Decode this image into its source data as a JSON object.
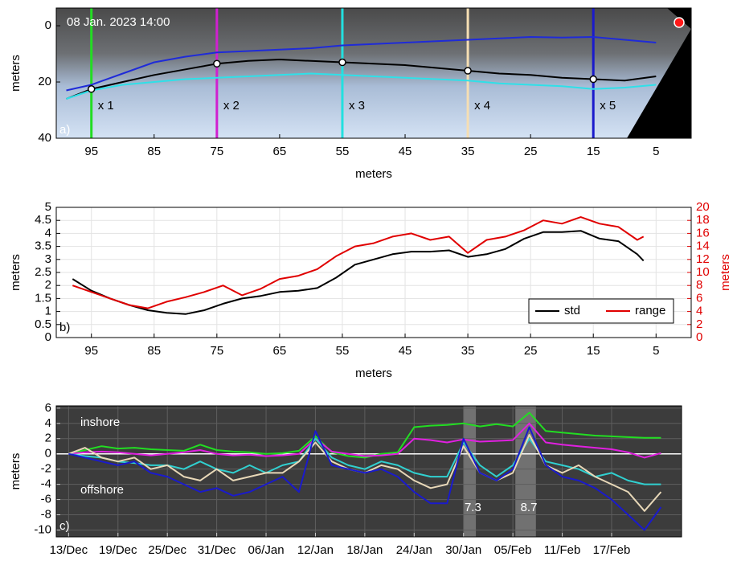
{
  "chart_data": [
    {
      "type": "line",
      "xlabel": "meters",
      "ylabel": "meters",
      "xlim": [
        100.6,
        -0.6
      ],
      "ylim": [
        40,
        -6.3
      ],
      "xticks": [
        95,
        85,
        75,
        65,
        55,
        45,
        35,
        25,
        15,
        5
      ],
      "yticks": [
        0,
        20,
        40
      ],
      "grid": false,
      "x": [
        99,
        95,
        90,
        85,
        80,
        75,
        70,
        65,
        60,
        55,
        50,
        45,
        40,
        35,
        30,
        25,
        20,
        15,
        10,
        5
      ],
      "series": [
        {
          "color": "#1f2bd8",
          "values": [
            23,
            21,
            17,
            13,
            11,
            9.5,
            9,
            8.5,
            8,
            7,
            6.5,
            6,
            5.5,
            5,
            4.5,
            4,
            4.2,
            4,
            5,
            6
          ]
        },
        {
          "color": "#000000",
          "values": [
            26,
            22.5,
            20,
            17.5,
            15.5,
            13.5,
            12.5,
            12,
            12.5,
            13,
            13.5,
            14,
            15,
            16,
            17,
            17.5,
            18.5,
            19,
            19.5,
            18
          ]
        },
        {
          "color": "#2fe0e8",
          "values": [
            26,
            23,
            21,
            20,
            19,
            18.5,
            18,
            17.5,
            17,
            17.5,
            18,
            18.5,
            19,
            19.5,
            20.5,
            21,
            21.5,
            22.5,
            22,
            21
          ]
        }
      ],
      "profiles": [
        {
          "label": "x 1",
          "x": 95,
          "y": 22.5,
          "color": "#22dd22"
        },
        {
          "label": "x 2",
          "x": 75,
          "y": 13.5,
          "color": "#d020d0"
        },
        {
          "label": "x 3",
          "x": 55,
          "y": 13,
          "color": "#22e0e0"
        },
        {
          "label": "x 4",
          "x": 35,
          "y": 16,
          "color": "#f5deb3"
        },
        {
          "label": "x 5",
          "x": 15,
          "y": 19,
          "color": "#1a1acc"
        }
      ],
      "annotations": [
        {
          "text": "08 Jan. 2023 14:00"
        },
        {
          "text": "a)"
        }
      ]
    },
    {
      "type": "line",
      "xlabel": "meters",
      "ylabel": "meters",
      "y2label": "meters",
      "y2_color": "#e00000",
      "xlim": [
        100.6,
        -0.6
      ],
      "ylim": [
        0,
        5
      ],
      "y2lim": [
        0,
        20
      ],
      "xticks": [
        95,
        85,
        75,
        65,
        55,
        45,
        35,
        25,
        15,
        5
      ],
      "yticks": [
        0,
        0.5,
        1,
        1.5,
        2,
        2.5,
        3,
        3.5,
        4,
        4.5,
        5
      ],
      "y2ticks": [
        0,
        2,
        4,
        6,
        8,
        10,
        12,
        14,
        16,
        18,
        20
      ],
      "grid": true,
      "legend": "lower right",
      "x": [
        98,
        95,
        92,
        89,
        86,
        83,
        80,
        77,
        74,
        71,
        68,
        65,
        62,
        59,
        56,
        53,
        50,
        47,
        44,
        41,
        38,
        35,
        32,
        29,
        26,
        23,
        20,
        17,
        14,
        11,
        8,
        7
      ],
      "series": [
        {
          "name": "std",
          "color": "#000000",
          "values": [
            2.25,
            1.8,
            1.5,
            1.25,
            1.05,
            0.95,
            0.9,
            1.05,
            1.3,
            1.5,
            1.6,
            1.75,
            1.8,
            1.9,
            2.3,
            2.8,
            3.0,
            3.2,
            3.3,
            3.3,
            3.35,
            3.1,
            3.2,
            3.4,
            3.8,
            4.05,
            4.05,
            4.1,
            3.8,
            3.7,
            3.2,
            2.95
          ]
        },
        {
          "name": "range",
          "color": "#e00000",
          "axis": "y2",
          "values": [
            8,
            7,
            6,
            5,
            4.5,
            5.5,
            6.2,
            7,
            8,
            6.5,
            7.5,
            9,
            9.5,
            10.5,
            12.5,
            14,
            14.5,
            15.5,
            16,
            15,
            15.5,
            13,
            15,
            15.5,
            16.5,
            18,
            17.5,
            18.5,
            17.5,
            17,
            15,
            15.5
          ]
        }
      ],
      "annotations": [
        {
          "text": "b)"
        }
      ]
    },
    {
      "type": "line",
      "ylabel": "meters",
      "plot_background": "#3c3c3c",
      "zero_line": 0,
      "xlim": [
        -1.5,
        74.5
      ],
      "ylim": [
        -10.9,
        6.3
      ],
      "xticks": [
        {
          "value": 0,
          "label": "13/Dec"
        },
        {
          "value": 6,
          "label": "19/Dec"
        },
        {
          "value": 12,
          "label": "25/Dec"
        },
        {
          "value": 18,
          "label": "31/Dec"
        },
        {
          "value": 24,
          "label": "06/Jan"
        },
        {
          "value": 30,
          "label": "12/Jan"
        },
        {
          "value": 36,
          "label": "18/Jan"
        },
        {
          "value": 42,
          "label": "24/Jan"
        },
        {
          "value": 48,
          "label": "30/Jan"
        },
        {
          "value": 54,
          "label": "05/Feb"
        },
        {
          "value": 60,
          "label": "11/Feb"
        },
        {
          "value": 66,
          "label": "17/Feb"
        }
      ],
      "yticks": [
        -10,
        -8,
        -6,
        -4,
        -2,
        0,
        2,
        4,
        6
      ],
      "grid": true,
      "x": [
        0,
        2,
        4,
        6,
        8,
        10,
        12,
        14,
        16,
        18,
        20,
        22,
        24,
        26,
        28,
        30,
        32,
        34,
        36,
        38,
        40,
        42,
        44,
        46,
        48,
        50,
        52,
        54,
        56,
        58,
        60,
        62,
        64,
        66,
        68,
        70,
        72
      ],
      "series": [
        {
          "color": "#22dd22",
          "values": [
            0,
            0.5,
            1.0,
            0.7,
            0.8,
            0.6,
            0.5,
            0.4,
            1.2,
            0.5,
            0.3,
            0.2,
            0.0,
            0.1,
            0.4,
            2.3,
            0.2,
            -0.3,
            -0.5,
            0.0,
            0.2,
            3.5,
            3.7,
            3.8,
            4.0,
            3.6,
            3.9,
            3.6,
            5.4,
            3.0,
            2.8,
            2.6,
            2.4,
            2.3,
            2.2,
            2.1,
            2.1
          ]
        },
        {
          "color": "#e020e0",
          "values": [
            0,
            0.2,
            0.3,
            0.2,
            0,
            -0.2,
            0,
            0.2,
            0.5,
            0,
            -0.2,
            -0.1,
            -0.3,
            -0.2,
            0,
            2.0,
            0.3,
            0,
            -0.3,
            -0.2,
            0,
            2.0,
            1.8,
            1.5,
            1.9,
            1.6,
            1.7,
            1.8,
            4.0,
            1.5,
            1.2,
            1.0,
            0.8,
            0.6,
            0.2,
            -0.5,
            0.1
          ]
        },
        {
          "color": "#30d0d0",
          "values": [
            0,
            -0.3,
            -0.5,
            -1.0,
            -1.2,
            -1.5,
            -1.5,
            -2.0,
            -1.0,
            -2.0,
            -2.5,
            -1.5,
            -2.5,
            -1.5,
            -1.0,
            2.0,
            -0.5,
            -1.5,
            -2.0,
            -1.0,
            -1.5,
            -2.5,
            -3.0,
            -3.0,
            1.5,
            -1.5,
            -3.0,
            -1.5,
            2.0,
            -1.0,
            -1.5,
            -2.0,
            -3.0,
            -2.5,
            -3.5,
            -4.0,
            -4.0
          ]
        },
        {
          "color": "#e8d8b8",
          "values": [
            0,
            0.8,
            -0.5,
            -1.0,
            -0.5,
            -2.0,
            -1.5,
            -3.0,
            -3.5,
            -2.0,
            -3.5,
            -3.0,
            -2.5,
            -2.5,
            -1.0,
            1.5,
            -1.0,
            -2.0,
            -2.5,
            -1.5,
            -2.0,
            -3.5,
            -4.5,
            -4.0,
            1.0,
            -2.5,
            -3.5,
            -2.5,
            2.5,
            -1.5,
            -2.5,
            -1.5,
            -3.0,
            -4.0,
            -5.0,
            -7.5,
            -5.0
          ]
        },
        {
          "color": "#1a1acc",
          "values": [
            0,
            -0.5,
            -1.0,
            -1.5,
            -1.0,
            -2.5,
            -3.0,
            -4.0,
            -5.0,
            -4.5,
            -5.5,
            -5.0,
            -4.0,
            -3.0,
            -5.0,
            3.0,
            -1.5,
            -2.0,
            -2.5,
            -2.0,
            -3.0,
            -5.0,
            -6.5,
            -6.5,
            2.0,
            -2.5,
            -3.5,
            -2.0,
            3.5,
            -1.5,
            -3.0,
            -3.5,
            -4.5,
            -6.0,
            -8.0,
            -10.0,
            -7.0
          ]
        }
      ],
      "bands": [
        {
          "from": 48,
          "to": 49.5,
          "label": "7.3"
        },
        {
          "from": 54.3,
          "to": 56.8,
          "label": "8.7"
        }
      ],
      "annotations": [
        {
          "text": "inshore"
        },
        {
          "text": "offshore"
        },
        {
          "text": "c)"
        }
      ]
    }
  ]
}
